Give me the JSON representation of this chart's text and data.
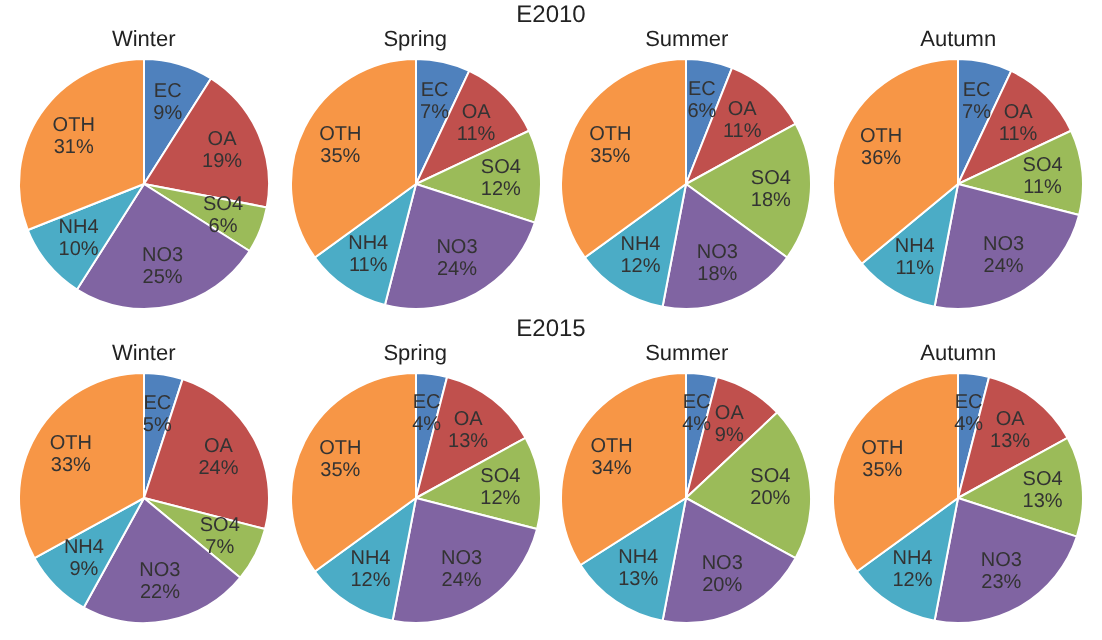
{
  "chart_data": [
    {
      "type": "other",
      "title": "E2010"
    },
    {
      "type": "pie",
      "title": "Winter",
      "categories": [
        "EC",
        "OA",
        "SO4",
        "NO3",
        "NH4",
        "OTH"
      ],
      "values": [
        9,
        19,
        6,
        25,
        10,
        31
      ],
      "value_labels": [
        "9%",
        "19%",
        "6%",
        "25%",
        "10%",
        "31%"
      ],
      "colors": [
        "#4f81bd",
        "#c0504d",
        "#9bbb59",
        "#8064a2",
        "#4bacc6",
        "#f79646"
      ],
      "legend": false
    },
    {
      "type": "pie",
      "title": "Spring",
      "categories": [
        "EC",
        "OA",
        "SO4",
        "NO3",
        "NH4",
        "OTH"
      ],
      "values": [
        7,
        11,
        12,
        24,
        11,
        35
      ],
      "value_labels": [
        "7%",
        "11%",
        "12%",
        "24%",
        "11%",
        "35%"
      ],
      "colors": [
        "#4f81bd",
        "#c0504d",
        "#9bbb59",
        "#8064a2",
        "#4bacc6",
        "#f79646"
      ],
      "legend": false
    },
    {
      "type": "pie",
      "title": "Summer",
      "categories": [
        "EC",
        "OA",
        "SO4",
        "NO3",
        "NH4",
        "OTH"
      ],
      "values": [
        6,
        11,
        18,
        18,
        12,
        35
      ],
      "value_labels": [
        "6%",
        "11%",
        "18%",
        "18%",
        "12%",
        "35%"
      ],
      "colors": [
        "#4f81bd",
        "#c0504d",
        "#9bbb59",
        "#8064a2",
        "#4bacc6",
        "#f79646"
      ],
      "legend": false
    },
    {
      "type": "pie",
      "title": "Autumn",
      "categories": [
        "EC",
        "OA",
        "SO4",
        "NO3",
        "NH4",
        "OTH"
      ],
      "values": [
        7,
        11,
        11,
        24,
        11,
        36
      ],
      "value_labels": [
        "7%",
        "11%",
        "11%",
        "24%",
        "11%",
        "36%"
      ],
      "colors": [
        "#4f81bd",
        "#c0504d",
        "#9bbb59",
        "#8064a2",
        "#4bacc6",
        "#f79646"
      ],
      "legend": false
    },
    {
      "type": "other",
      "title": "E2015"
    },
    {
      "type": "pie",
      "title": "Winter",
      "categories": [
        "EC",
        "OA",
        "SO4",
        "NO3",
        "NH4",
        "OTH"
      ],
      "values": [
        5,
        24,
        7,
        22,
        9,
        33
      ],
      "value_labels": [
        "5%",
        "24%",
        "7%",
        "22%",
        "9%",
        "33%"
      ],
      "colors": [
        "#4f81bd",
        "#c0504d",
        "#9bbb59",
        "#8064a2",
        "#4bacc6",
        "#f79646"
      ],
      "legend": false
    },
    {
      "type": "pie",
      "title": "Spring",
      "categories": [
        "EC",
        "OA",
        "SO4",
        "NO3",
        "NH4",
        "OTH"
      ],
      "values": [
        4,
        13,
        12,
        24,
        12,
        35
      ],
      "value_labels": [
        "4%",
        "13%",
        "12%",
        "24%",
        "12%",
        "35%"
      ],
      "colors": [
        "#4f81bd",
        "#c0504d",
        "#9bbb59",
        "#8064a2",
        "#4bacc6",
        "#f79646"
      ],
      "legend": false
    },
    {
      "type": "pie",
      "title": "Summer",
      "categories": [
        "EC",
        "OA",
        "SO4",
        "NO3",
        "NH4",
        "OTH"
      ],
      "values": [
        4,
        9,
        20,
        20,
        13,
        34
      ],
      "value_labels": [
        "4%",
        "9%",
        "20%",
        "20%",
        "13%",
        "34%"
      ],
      "colors": [
        "#4f81bd",
        "#c0504d",
        "#9bbb59",
        "#8064a2",
        "#4bacc6",
        "#f79646"
      ],
      "legend": false
    },
    {
      "type": "pie",
      "title": "Autumn",
      "categories": [
        "EC",
        "OA",
        "SO4",
        "NO3",
        "NH4",
        "OTH"
      ],
      "values": [
        4,
        13,
        13,
        23,
        12,
        35
      ],
      "value_labels": [
        "4%",
        "13%",
        "13%",
        "23%",
        "12%",
        "35%"
      ],
      "colors": [
        "#4f81bd",
        "#c0504d",
        "#9bbb59",
        "#8064a2",
        "#4bacc6",
        "#f79646"
      ],
      "legend": false
    }
  ]
}
